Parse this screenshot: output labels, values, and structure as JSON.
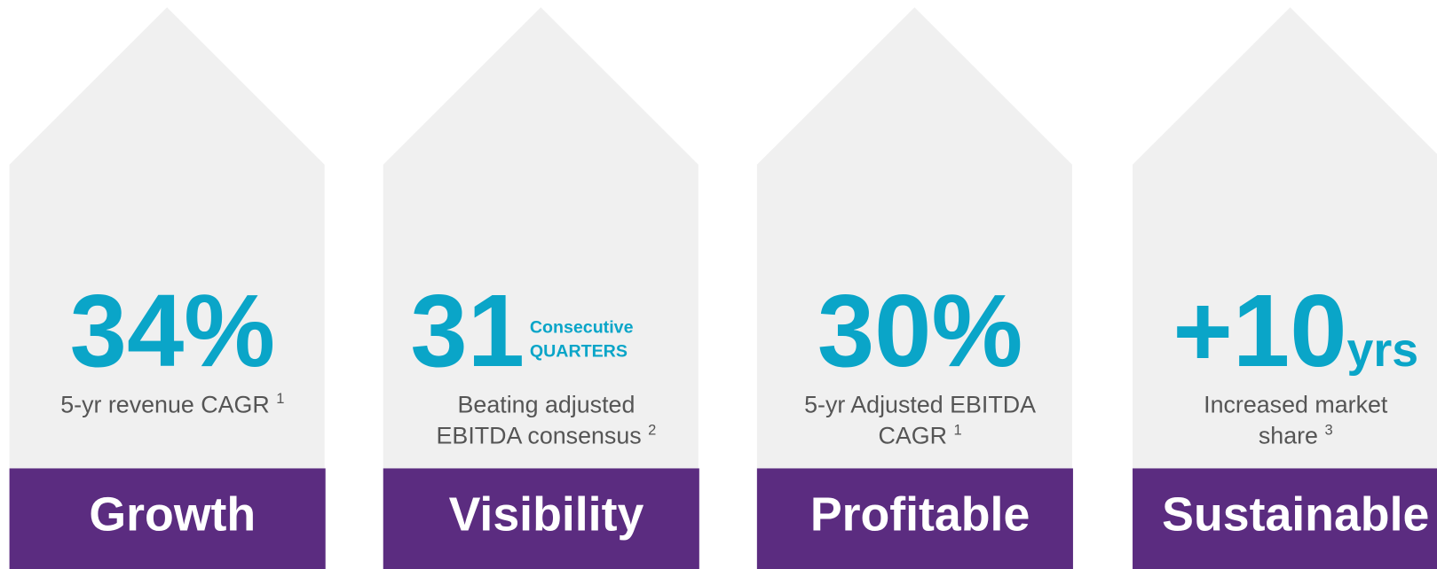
{
  "pillars": [
    {
      "value": "34%",
      "description": [
        "5-yr revenue CAGR"
      ],
      "footnote": "1",
      "label": "Growth"
    },
    {
      "value": "31",
      "unit_lines": [
        "Consecutive",
        "QUARTERS"
      ],
      "description": [
        "Beating adjusted",
        "EBITDA consensus"
      ],
      "footnote": "2",
      "label": "Visibility"
    },
    {
      "value": "30%",
      "description": [
        "5-yr Adjusted EBITDA",
        "CAGR"
      ],
      "footnote": "1",
      "label": "Profitable"
    },
    {
      "value": "+10",
      "unit": "yrs",
      "description": [
        "Increased market",
        "share"
      ],
      "footnote": "3",
      "label": "Sustainable"
    }
  ]
}
